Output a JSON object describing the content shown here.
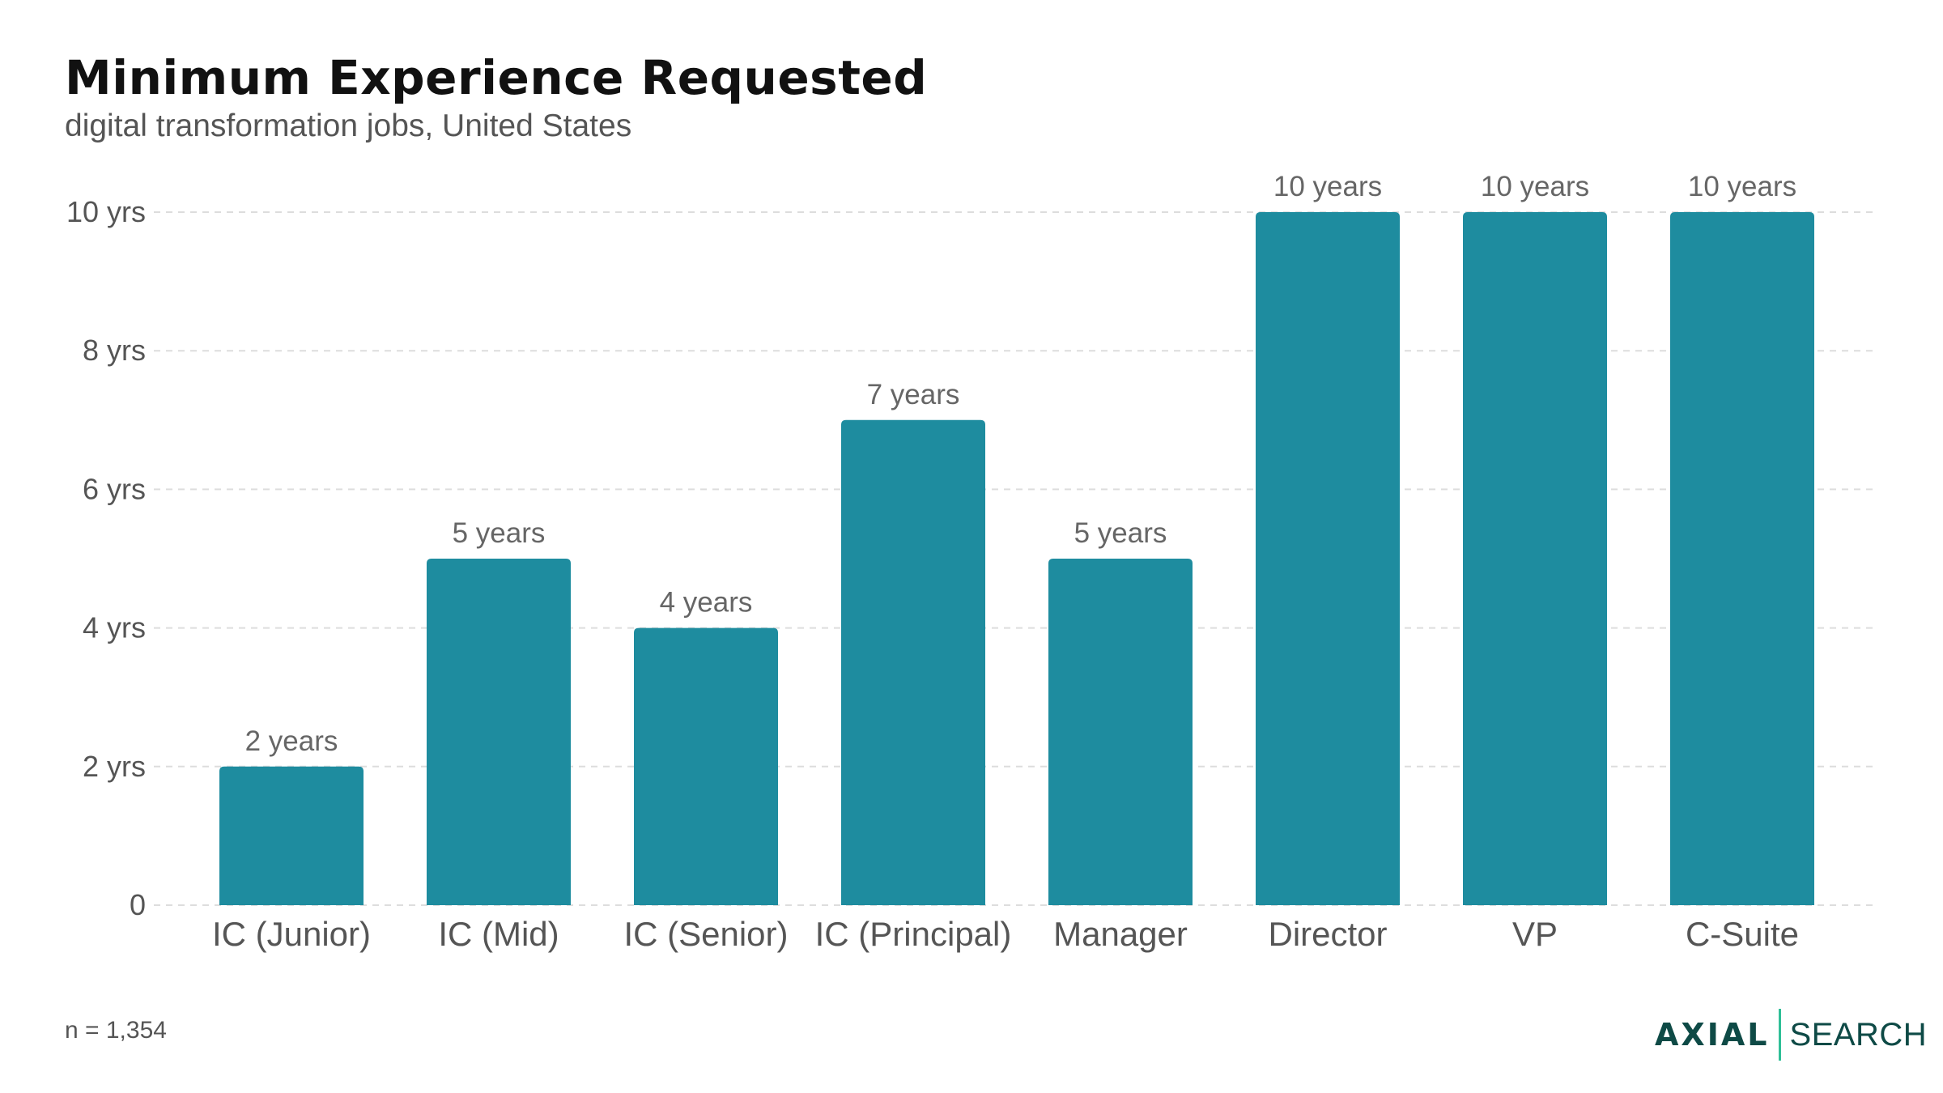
{
  "header": {
    "title": "Minimum Experience Requested",
    "subtitle": "digital transformation jobs, United States"
  },
  "footer": {
    "note": "n = 1,354",
    "brand_primary": "AXIAL",
    "brand_secondary": "SEARCH"
  },
  "colors": {
    "bar": "#1e8c9f",
    "grid": "#dddddd",
    "brand": "#0e4a46",
    "brand_accent": "#2fbf97"
  },
  "chart_data": {
    "type": "bar",
    "categories": [
      "IC (Junior)",
      "IC (Mid)",
      "IC (Senior)",
      "IC (Principal)",
      "Manager",
      "Director",
      "VP",
      "C-Suite"
    ],
    "values": [
      2,
      5,
      4,
      7,
      5,
      10,
      10,
      10
    ],
    "data_labels": [
      "2 years",
      "5 years",
      "4 years",
      "7 years",
      "5 years",
      "10 years",
      "10 years",
      "10 years"
    ],
    "yticks": [
      0,
      2,
      4,
      6,
      8,
      10
    ],
    "ytick_labels": [
      "0",
      "2 yrs",
      "4 yrs",
      "6 yrs",
      "8 yrs",
      "10 yrs"
    ],
    "ylim": [
      0,
      10
    ],
    "grid": true,
    "legend": "none"
  }
}
